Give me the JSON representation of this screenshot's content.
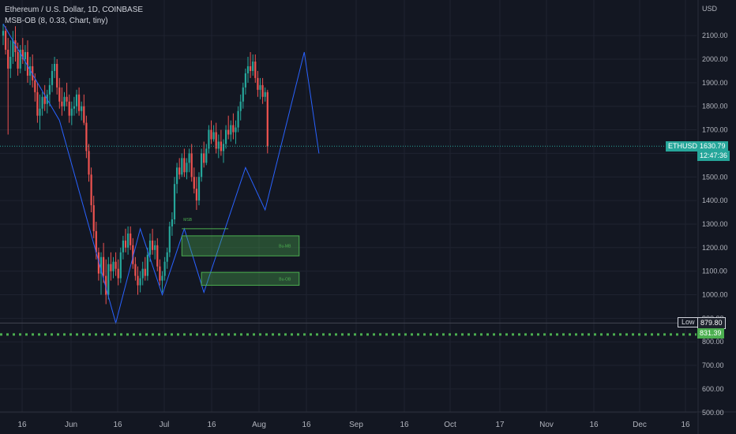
{
  "header": {
    "symbol_title": "Ethereum / U.S. Dollar, 1D, COINBASE",
    "indicator_title": "MSB-OB (8, 0.33, Chart, tiny)"
  },
  "price_axis": {
    "currency": "USD",
    "ticks": [
      "2100.00",
      "2000.00",
      "1900.00",
      "1800.00",
      "1700.00",
      "1600.00",
      "1500.00",
      "1400.00",
      "1300.00",
      "1200.00",
      "1100.00",
      "1000.00",
      "900.00",
      "800.00",
      "700.00",
      "600.00",
      "500.00"
    ]
  },
  "time_axis": {
    "ticks": [
      "16",
      "Jun",
      "16",
      "Jul",
      "16",
      "Aug",
      "16",
      "Sep",
      "16",
      "Oct",
      "17",
      "Nov",
      "16",
      "Dec",
      "16"
    ]
  },
  "price_badge": {
    "symbol": "ETHUSD",
    "price": "1630.79",
    "countdown": "12:47:36",
    "color": "#26a69a"
  },
  "low_badge": {
    "label": "Low",
    "value": "879.80"
  },
  "level_badge": {
    "value": "831.39",
    "color": "#4caf50"
  },
  "chart_data": {
    "type": "candlestick",
    "title": "Ethereum / U.S. Dollar, 1D, COINBASE",
    "currency": "USD",
    "ylim": [
      480,
      2170
    ],
    "last_price": 1630.79,
    "period_low": 879.8,
    "support_level": 831.39,
    "colors": {
      "up": "#26a69a",
      "down": "#ef5350",
      "zigzag": "#2962ff",
      "ob": "#4caf50"
    },
    "candles": [
      [
        2100,
        2150,
        2060,
        2120
      ],
      [
        2120,
        2140,
        2020,
        2040
      ],
      [
        2040,
        2090,
        1680,
        1960
      ],
      [
        1960,
        2080,
        1920,
        2010
      ],
      [
        2010,
        2120,
        1980,
        2080
      ],
      [
        2080,
        2140,
        1990,
        2030
      ],
      [
        2030,
        2070,
        1930,
        1960
      ],
      [
        1960,
        2060,
        1940,
        2040
      ],
      [
        2040,
        2090,
        1980,
        2000
      ],
      [
        2000,
        2060,
        1950,
        2030
      ],
      [
        2030,
        2080,
        1900,
        1930
      ],
      [
        1930,
        2010,
        1890,
        1970
      ],
      [
        1970,
        2020,
        1880,
        1910
      ],
      [
        1910,
        1940,
        1820,
        1860
      ],
      [
        1860,
        1900,
        1730,
        1760
      ],
      [
        1760,
        1850,
        1700,
        1790
      ],
      [
        1790,
        1860,
        1760,
        1840
      ],
      [
        1840,
        1890,
        1780,
        1810
      ],
      [
        1810,
        1870,
        1770,
        1850
      ],
      [
        1850,
        1920,
        1800,
        1890
      ],
      [
        1890,
        1980,
        1860,
        1950
      ],
      [
        1950,
        2010,
        1920,
        1980
      ],
      [
        1980,
        2000,
        1850,
        1880
      ],
      [
        1880,
        1920,
        1790,
        1820
      ],
      [
        1820,
        1880,
        1760,
        1800
      ],
      [
        1800,
        1860,
        1780,
        1840
      ],
      [
        1840,
        1900,
        1800,
        1820
      ],
      [
        1820,
        1850,
        1730,
        1760
      ],
      [
        1760,
        1820,
        1720,
        1790
      ],
      [
        1790,
        1840,
        1760,
        1800
      ],
      [
        1800,
        1870,
        1770,
        1850
      ],
      [
        1850,
        1880,
        1760,
        1780
      ],
      [
        1780,
        1820,
        1740,
        1800
      ],
      [
        1800,
        1850,
        1720,
        1730
      ],
      [
        1730,
        1760,
        1580,
        1610
      ],
      [
        1610,
        1640,
        1480,
        1510
      ],
      [
        1510,
        1540,
        1350,
        1380
      ],
      [
        1380,
        1420,
        1240,
        1270
      ],
      [
        1270,
        1310,
        1150,
        1180
      ],
      [
        1180,
        1200,
        1060,
        1090
      ],
      [
        1090,
        1180,
        1000,
        1160
      ],
      [
        1160,
        1220,
        1050,
        1080
      ],
      [
        1080,
        1150,
        960,
        1000
      ],
      [
        1000,
        1160,
        980,
        1130
      ],
      [
        1130,
        1180,
        1060,
        1100
      ],
      [
        1100,
        1160,
        1070,
        1140
      ],
      [
        1140,
        1180,
        1080,
        1110
      ],
      [
        1110,
        1150,
        1040,
        1070
      ],
      [
        1070,
        1200,
        1050,
        1180
      ],
      [
        1180,
        1250,
        1150,
        1230
      ],
      [
        1230,
        1280,
        1180,
        1200
      ],
      [
        1200,
        1290,
        1170,
        1260
      ],
      [
        1260,
        1290,
        1190,
        1210
      ],
      [
        1210,
        1240,
        1110,
        1130
      ],
      [
        1130,
        1160,
        1060,
        1080
      ],
      [
        1080,
        1120,
        1000,
        1040
      ],
      [
        1040,
        1100,
        1010,
        1070
      ],
      [
        1070,
        1140,
        1040,
        1110
      ],
      [
        1110,
        1160,
        1060,
        1080
      ],
      [
        1080,
        1200,
        1060,
        1170
      ],
      [
        1170,
        1260,
        1140,
        1230
      ],
      [
        1230,
        1280,
        1170,
        1190
      ],
      [
        1190,
        1230,
        1150,
        1210
      ],
      [
        1210,
        1240,
        1100,
        1120
      ],
      [
        1120,
        1150,
        1040,
        1060
      ],
      [
        1060,
        1100,
        1010,
        1080
      ],
      [
        1080,
        1160,
        1060,
        1140
      ],
      [
        1140,
        1200,
        1110,
        1180
      ],
      [
        1180,
        1310,
        1160,
        1290
      ],
      [
        1290,
        1350,
        1250,
        1320
      ],
      [
        1320,
        1500,
        1300,
        1470
      ],
      [
        1470,
        1560,
        1430,
        1540
      ],
      [
        1540,
        1580,
        1490,
        1510
      ],
      [
        1510,
        1600,
        1500,
        1580
      ],
      [
        1580,
        1620,
        1500,
        1520
      ],
      [
        1520,
        1580,
        1490,
        1560
      ],
      [
        1560,
        1620,
        1520,
        1600
      ],
      [
        1600,
        1640,
        1480,
        1500
      ],
      [
        1500,
        1540,
        1430,
        1450
      ],
      [
        1450,
        1500,
        1360,
        1400
      ],
      [
        1400,
        1520,
        1380,
        1500
      ],
      [
        1500,
        1620,
        1480,
        1600
      ],
      [
        1600,
        1650,
        1540,
        1560
      ],
      [
        1560,
        1640,
        1550,
        1620
      ],
      [
        1620,
        1720,
        1600,
        1700
      ],
      [
        1700,
        1740,
        1640,
        1660
      ],
      [
        1660,
        1720,
        1650,
        1690
      ],
      [
        1690,
        1730,
        1600,
        1620
      ],
      [
        1620,
        1680,
        1580,
        1650
      ],
      [
        1650,
        1700,
        1590,
        1610
      ],
      [
        1610,
        1660,
        1560,
        1640
      ],
      [
        1640,
        1720,
        1620,
        1700
      ],
      [
        1700,
        1760,
        1660,
        1680
      ],
      [
        1680,
        1740,
        1650,
        1720
      ],
      [
        1720,
        1770,
        1660,
        1690
      ],
      [
        1690,
        1740,
        1640,
        1710
      ],
      [
        1710,
        1800,
        1690,
        1780
      ],
      [
        1780,
        1850,
        1740,
        1820
      ],
      [
        1820,
        1900,
        1790,
        1880
      ],
      [
        1880,
        1960,
        1850,
        1940
      ],
      [
        1940,
        2010,
        1900,
        1970
      ],
      [
        1970,
        2030,
        1920,
        1950
      ],
      [
        1950,
        2020,
        1930,
        1990
      ],
      [
        1990,
        2020,
        1900,
        1920
      ],
      [
        1920,
        1950,
        1840,
        1870
      ],
      [
        1870,
        1920,
        1830,
        1890
      ],
      [
        1890,
        1920,
        1810,
        1840
      ],
      [
        1840,
        1880,
        1820,
        1860
      ],
      [
        1860,
        1870,
        1600,
        1630
      ]
    ],
    "zigzag": [
      [
        0,
        2150
      ],
      [
        23,
        1740
      ],
      [
        46,
        880
      ],
      [
        56,
        1280
      ],
      [
        65,
        1000
      ],
      [
        74,
        1280
      ],
      [
        82,
        1010
      ],
      [
        99,
        1540
      ],
      [
        107,
        1360
      ],
      [
        123,
        2030
      ],
      [
        129,
        1600
      ]
    ],
    "order_blocks": [
      {
        "label": "Bu-MB",
        "price_top": 1250,
        "price_bottom": 1165,
        "start": 73
      },
      {
        "label": "Bu-OB",
        "price_top": 1095,
        "price_bottom": 1040,
        "start": 81
      }
    ],
    "msb": {
      "label": "MSB",
      "price": 1280,
      "start": 73,
      "end": 92
    }
  }
}
